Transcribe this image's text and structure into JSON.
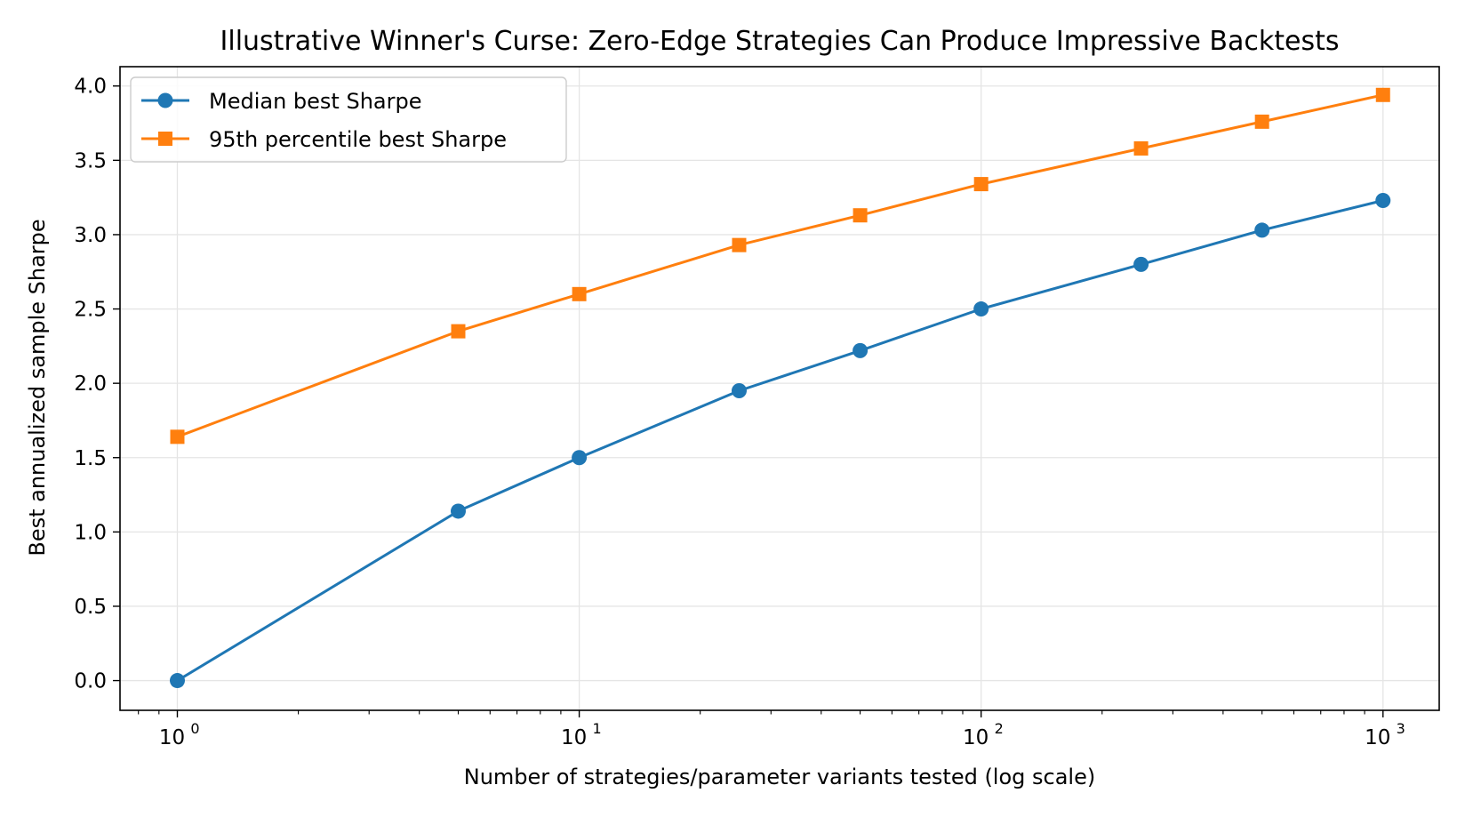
{
  "chart_data": {
    "type": "line",
    "title": "Illustrative Winner's Curse: Zero-Edge Strategies Can Produce Impressive Backtests",
    "xlabel": "Number of strategies/parameter variants tested (log scale)",
    "ylabel": "Best annualized sample Sharpe",
    "xscale": "log",
    "xlim": [
      0.72,
      1380
    ],
    "ylim": [
      -0.2,
      4.13
    ],
    "x_ticks": [
      {
        "value": 1,
        "base": "10",
        "exp": "0"
      },
      {
        "value": 10,
        "base": "10",
        "exp": "1"
      },
      {
        "value": 100,
        "base": "10",
        "exp": "2"
      },
      {
        "value": 1000,
        "base": "10",
        "exp": "3"
      }
    ],
    "y_ticks": [
      {
        "value": 0.0,
        "label": "0.0"
      },
      {
        "value": 0.5,
        "label": "0.5"
      },
      {
        "value": 1.0,
        "label": "1.0"
      },
      {
        "value": 1.5,
        "label": "1.5"
      },
      {
        "value": 2.0,
        "label": "2.0"
      },
      {
        "value": 2.5,
        "label": "2.5"
      },
      {
        "value": 3.0,
        "label": "3.0"
      },
      {
        "value": 3.5,
        "label": "3.5"
      },
      {
        "value": 4.0,
        "label": "4.0"
      }
    ],
    "grid": true,
    "legend_position": "upper-left",
    "x": [
      1,
      5,
      10,
      25,
      50,
      100,
      250,
      500,
      1000
    ],
    "series": [
      {
        "name": "Median best Sharpe",
        "color": "#1f77b4",
        "marker": "circle",
        "values": [
          0.0,
          1.14,
          1.5,
          1.95,
          2.22,
          2.5,
          2.8,
          3.03,
          3.23
        ]
      },
      {
        "name": "95th percentile best Sharpe",
        "color": "#ff7f0e",
        "marker": "square",
        "values": [
          1.64,
          2.35,
          2.6,
          2.93,
          3.13,
          3.34,
          3.58,
          3.76,
          3.94
        ]
      }
    ]
  }
}
